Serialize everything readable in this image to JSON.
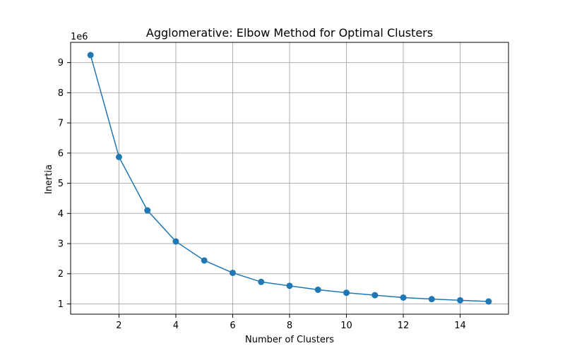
{
  "chart_data": {
    "type": "line",
    "title": "Agglomerative: Elbow Method for Optimal Clusters",
    "xlabel": "Number of Clusters",
    "ylabel": "Inertia",
    "y_offset_label": "1e6",
    "x": [
      1,
      2,
      3,
      4,
      5,
      6,
      7,
      8,
      9,
      10,
      11,
      12,
      13,
      14,
      15
    ],
    "series": [
      {
        "values": [
          9.25,
          5.87,
          4.1,
          3.07,
          2.44,
          2.03,
          1.73,
          1.6,
          1.47,
          1.37,
          1.29,
          1.21,
          1.16,
          1.12,
          1.08
        ],
        "color": "#1f77b4",
        "marker": "circle"
      }
    ],
    "xlim": [
      0.3,
      15.7
    ],
    "ylim": [
      0.66,
      9.67
    ],
    "x_ticks": [
      2,
      4,
      6,
      8,
      10,
      12,
      14
    ],
    "y_ticks": [
      1,
      2,
      3,
      4,
      5,
      6,
      7,
      8,
      9
    ],
    "grid": true
  }
}
